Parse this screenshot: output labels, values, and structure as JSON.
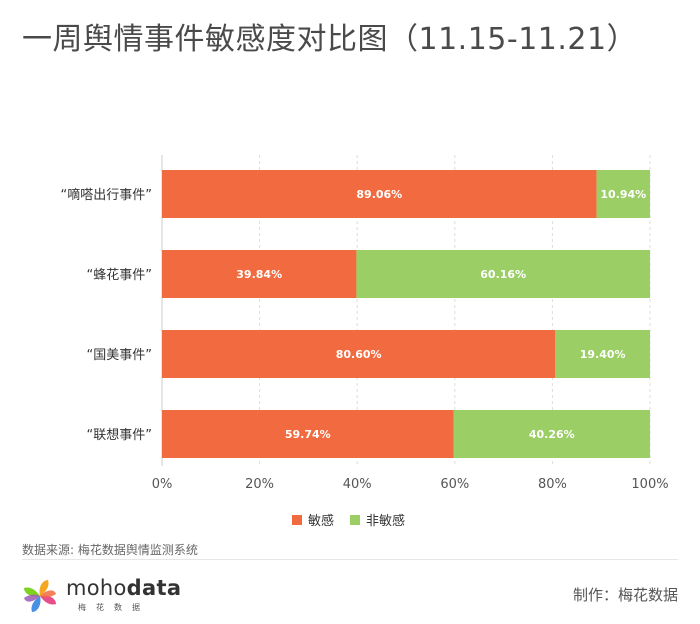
{
  "title": "一周舆情事件敏感度对比图（11.15-11.21）",
  "source": "数据来源: 梅花数据舆情监测系统",
  "credit": "制作：梅花数据",
  "logo": {
    "word_light": "moho",
    "word_bold": "data",
    "sub": "梅花数据"
  },
  "colors": {
    "sensitive": "#f26b40",
    "non_sensitive": "#9bce64",
    "grid": "#dddddd",
    "axis": "#cccccc"
  },
  "chart_data": {
    "type": "bar",
    "orientation": "horizontal",
    "stacked": true,
    "categories": [
      "“嘀嗒出行事件”",
      "“蜂花事件”",
      "“国美事件”",
      "“联想事件”"
    ],
    "series": [
      {
        "name": "敏感",
        "values": [
          89.06,
          39.84,
          80.6,
          59.74
        ]
      },
      {
        "name": "非敏感",
        "values": [
          10.94,
          60.16,
          19.4,
          40.26
        ]
      }
    ],
    "xlim": [
      0,
      100
    ],
    "xticks": [
      "0%",
      "20%",
      "40%",
      "60%",
      "80%",
      "100%"
    ],
    "grid": true,
    "legend": "bottom-center"
  }
}
